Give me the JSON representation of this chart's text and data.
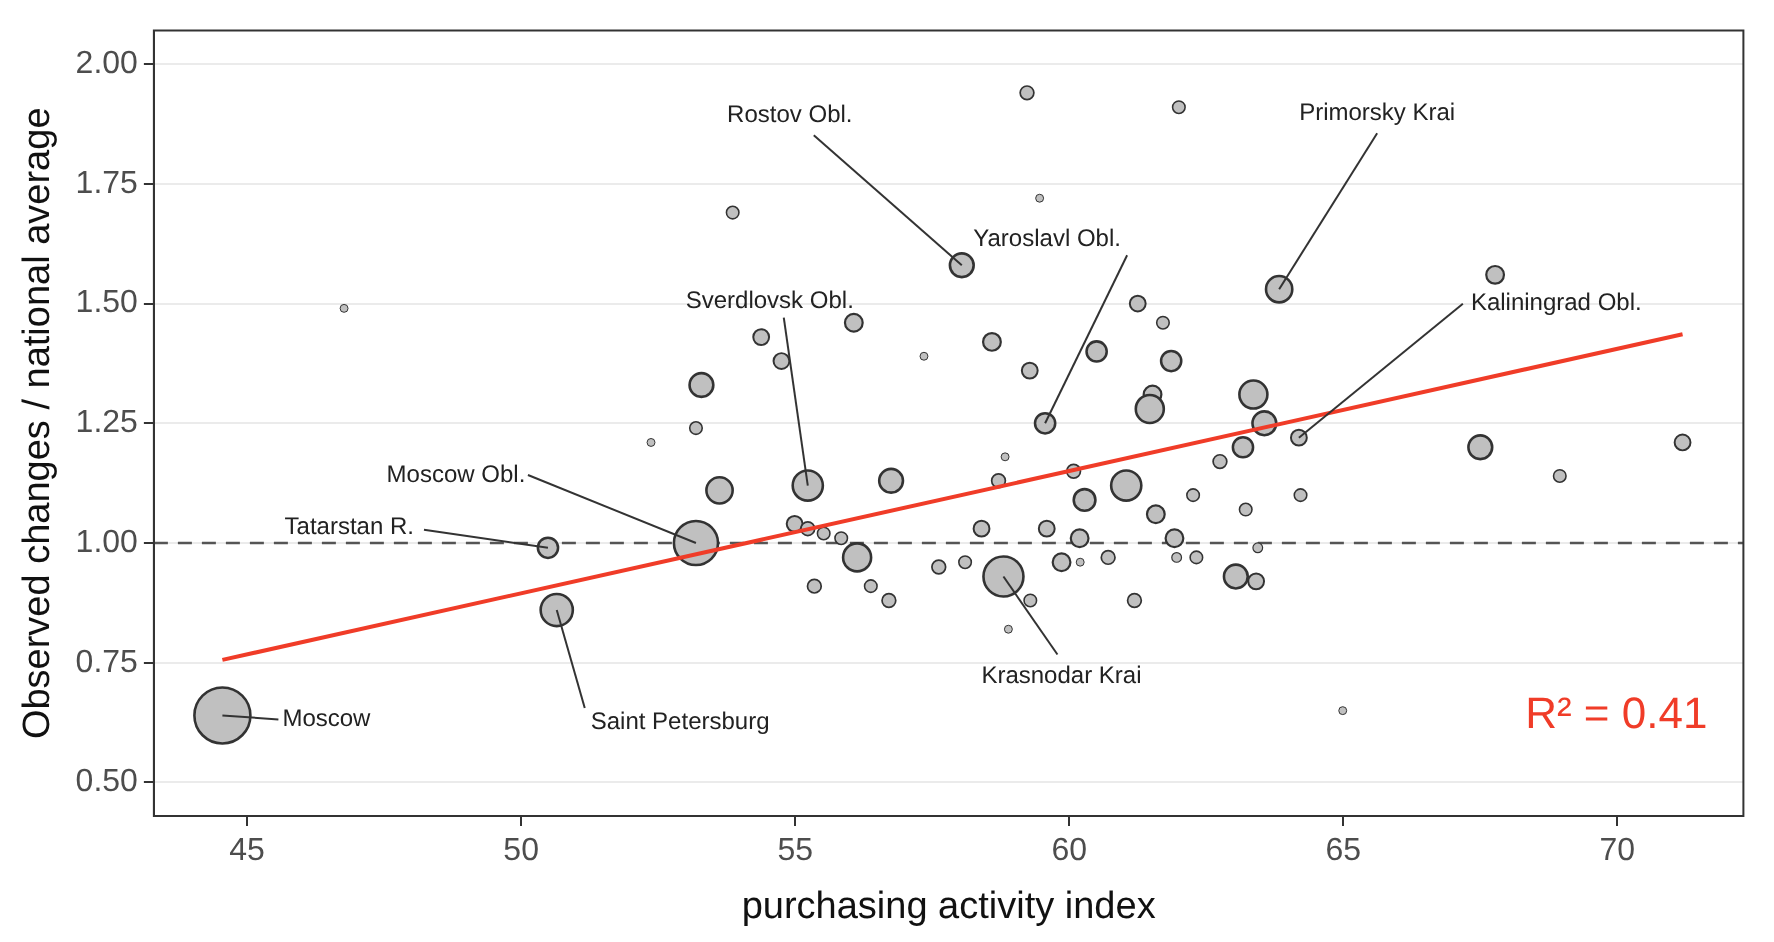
{
  "chart_data": {
    "type": "bubble",
    "xlabel": "purchasing activity index",
    "ylabel": "Observed changes / national average",
    "xlim": [
      43.3,
      72.3
    ],
    "xticks": [
      45,
      50,
      55,
      60,
      65,
      70
    ],
    "ylim": [
      0.43,
      2.07
    ],
    "yticks": [
      {
        "value": 0.5,
        "label": "0.50"
      },
      {
        "value": 0.75,
        "label": "0.75"
      },
      {
        "value": 1,
        "label": "1.00"
      },
      {
        "value": 1.25,
        "label": "1.25"
      },
      {
        "value": 1.5,
        "label": "1.50"
      },
      {
        "value": 1.75,
        "label": "1.75"
      },
      {
        "value": 2,
        "label": "2.00"
      }
    ],
    "grid": "y",
    "series": [
      {
        "type": "bubble",
        "color": "#c0c0c0",
        "marker": "circle",
        "x": [
          46.77,
          53.86,
          53.29,
          53.19,
          52.37,
          53.62,
          59.23,
          62.0,
          59.46,
          58.04,
          63.83,
          56.07,
          61.25,
          61.71,
          54.38,
          54.75,
          57.35,
          58.59,
          59.28,
          60.5,
          61.86,
          61.52,
          61.47,
          63.36,
          59.56,
          63.56,
          64.19,
          63.17,
          62.75,
          58.83,
          60.08,
          62.26,
          58.71,
          56.75,
          55.23,
          60.28,
          61.04,
          61.58,
          63.22,
          64.22,
          67.77,
          67.5,
          68.95,
          71.19,
          44.55,
          50.49,
          50.65,
          53.19,
          54.99,
          55.23,
          55.52,
          55.84,
          56.13,
          55.35,
          56.38,
          56.71,
          57.62,
          58.1,
          58.4,
          59.59,
          58.8,
          59.29,
          58.89,
          60.19,
          59.86,
          60.2,
          60.71,
          61.19,
          61.92,
          61.96,
          62.32,
          63.04,
          63.41,
          63.44,
          64.99
        ],
        "values": [
          1.49,
          1.69,
          1.33,
          1.24,
          1.21,
          1.11,
          1.94,
          1.91,
          1.72,
          1.58,
          1.53,
          1.46,
          1.5,
          1.46,
          1.43,
          1.38,
          1.39,
          1.42,
          1.36,
          1.4,
          1.38,
          1.31,
          1.28,
          1.31,
          1.25,
          1.25,
          1.22,
          1.2,
          1.17,
          1.18,
          1.15,
          1.1,
          1.13,
          1.13,
          1.12,
          1.09,
          1.12,
          1.06,
          1.07,
          1.1,
          1.56,
          1.2,
          1.14,
          1.21,
          0.64,
          0.99,
          0.86,
          1.0,
          1.04,
          1.03,
          1.02,
          1.01,
          0.97,
          0.91,
          0.91,
          0.88,
          0.95,
          0.96,
          1.03,
          1.03,
          0.93,
          0.88,
          0.82,
          1.01,
          0.96,
          0.96,
          0.97,
          0.88,
          1.01,
          0.97,
          0.97,
          0.93,
          0.92,
          0.99,
          0.65
        ],
        "sizes": [
          0.02,
          0.05,
          0.18,
          0.05,
          0.02,
          0.22,
          0.06,
          0.05,
          0.02,
          0.18,
          0.22,
          0.1,
          0.08,
          0.05,
          0.08,
          0.08,
          0.02,
          0.1,
          0.08,
          0.13,
          0.13,
          0.1,
          0.25,
          0.25,
          0.13,
          0.18,
          0.08,
          0.13,
          0.06,
          0.02,
          0.06,
          0.05,
          0.06,
          0.18,
          0.29,
          0.15,
          0.29,
          0.1,
          0.05,
          0.05,
          0.1,
          0.18,
          0.05,
          0.08,
          1,
          0.13,
          0.33,
          0.62,
          0.08,
          0.06,
          0.05,
          0.05,
          0.25,
          0.06,
          0.05,
          0.06,
          0.06,
          0.05,
          0.08,
          0.08,
          0.51,
          0.05,
          0.02,
          0.1,
          0.1,
          0.02,
          0.06,
          0.06,
          0.1,
          0.03,
          0.05,
          0.18,
          0.08,
          0.03,
          0.02
        ]
      },
      {
        "type": "line",
        "color": "#f03c28",
        "x": [
          44.55,
          71.19
        ],
        "values": [
          0.756,
          1.436
        ]
      }
    ],
    "ref_lines": [
      {
        "axis": "y",
        "value": 1,
        "color": "#555555",
        "line_style": "dashed"
      }
    ],
    "annotations": [
      {
        "text": "Moscow",
        "x": 44.55,
        "y": 0.64
      },
      {
        "text": "Saint Petersburg",
        "x": 50.65,
        "y": 0.86
      },
      {
        "text": "Tatarstan R.",
        "x": 50.49,
        "y": 0.99
      },
      {
        "text": "Moscow Obl.",
        "x": 53.19,
        "y": 1.0
      },
      {
        "text": "Sverdlovsk Obl.",
        "x": 55.23,
        "y": 1.12
      },
      {
        "text": "Rostov Obl.",
        "x": 58.04,
        "y": 1.58
      },
      {
        "text": "Yaroslavl Obl.",
        "x": 59.56,
        "y": 1.25
      },
      {
        "text": "Primorsky Krai",
        "x": 63.83,
        "y": 1.53
      },
      {
        "text": "Kaliningrad Obl.",
        "x": 64.19,
        "y": 1.22
      },
      {
        "text": "Krasnodar Krai",
        "x": 58.8,
        "y": 0.93
      },
      "R² = 0.41"
    ]
  }
}
